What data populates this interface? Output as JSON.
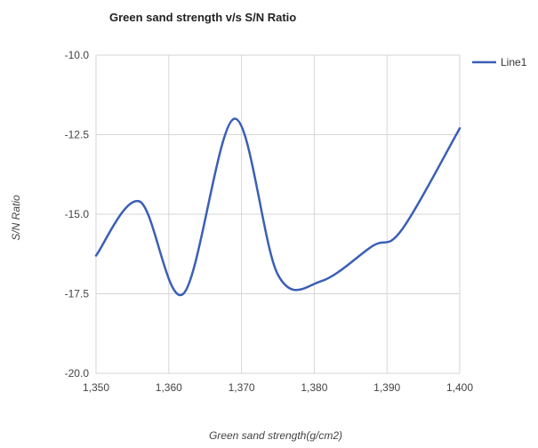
{
  "chart_data": {
    "type": "line",
    "title": "Green sand strength v/s S/N Ratio",
    "xlabel": "Green sand strength(g/cm2)",
    "ylabel": "S/N Ratio",
    "xlim": [
      1350,
      1400
    ],
    "ylim": [
      -20.0,
      -10.0
    ],
    "x_ticks": [
      "1,350",
      "1,360",
      "1,370",
      "1,380",
      "1,390",
      "1,400"
    ],
    "y_ticks": [
      "-10.0",
      "-12.5",
      "-15.0",
      "-17.5",
      "-20.0"
    ],
    "legend_position": "top-right",
    "grid": true,
    "series": [
      {
        "name": "Line1",
        "color": "#3a5fb5",
        "x": [
          1350,
          1356,
          1362,
          1369,
          1375,
          1381,
          1388,
          1392,
          1400
        ],
        "y": [
          -16.3,
          -14.6,
          -17.5,
          -12.0,
          -16.9,
          -17.1,
          -16.0,
          -15.5,
          -12.3
        ]
      }
    ]
  }
}
